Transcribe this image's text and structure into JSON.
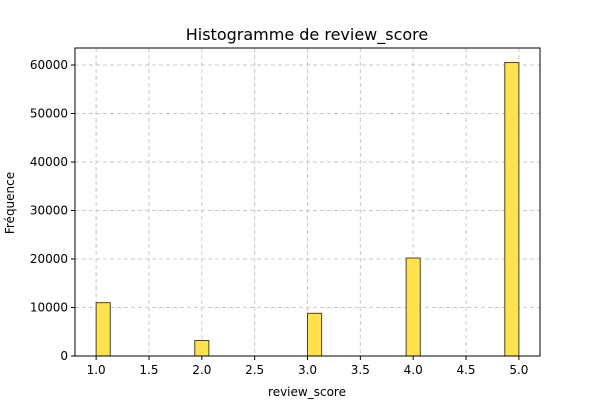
{
  "chart_data": {
    "type": "bar",
    "title": "Histogramme de review_score",
    "xlabel": "review_score",
    "ylabel": "Fréquence",
    "xlim": [
      0.8,
      5.2
    ],
    "ylim": [
      0,
      63500
    ],
    "x_ticks": [
      1.0,
      1.5,
      2.0,
      2.5,
      3.0,
      3.5,
      4.0,
      4.5,
      5.0
    ],
    "x_tick_labels": [
      "1.0",
      "1.5",
      "2.0",
      "2.5",
      "3.0",
      "3.5",
      "4.0",
      "4.5",
      "5.0"
    ],
    "y_ticks": [
      0,
      10000,
      20000,
      30000,
      40000,
      50000,
      60000
    ],
    "y_tick_labels": [
      "0",
      "10000",
      "20000",
      "30000",
      "40000",
      "50000",
      "60000"
    ],
    "bin_width": 0.1333,
    "bars": [
      {
        "x_start": 1.0,
        "value": 11000
      },
      {
        "x_start": 1.9333,
        "value": 3200
      },
      {
        "x_start": 3.0,
        "value": 8800
      },
      {
        "x_start": 3.9333,
        "value": 20200
      },
      {
        "x_start": 4.8667,
        "value": 60500
      }
    ],
    "grid": true,
    "grid_style": "dashed",
    "bar_color": "#FFE24D",
    "bar_edge_color": "#4d4422",
    "grid_color": "#c8c8c8"
  }
}
